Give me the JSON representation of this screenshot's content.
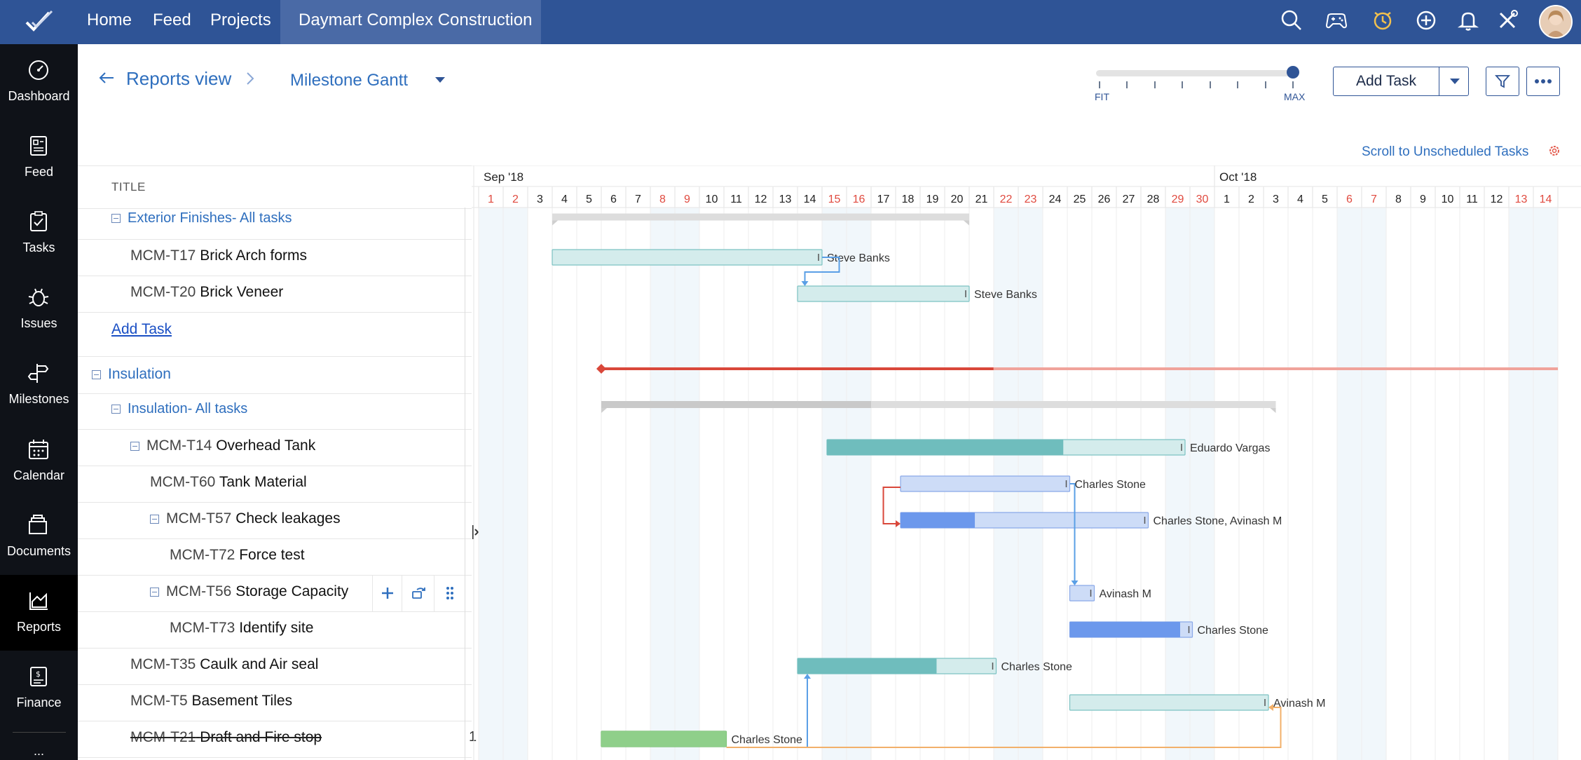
{
  "topbar": {
    "nav": [
      "Home",
      "Feed",
      "Projects"
    ],
    "active_project": "Daymart Complex Construction",
    "icons": [
      "search-icon",
      "gamepad-icon",
      "timer-icon",
      "add-circle-icon",
      "bell-icon",
      "tools-icon"
    ],
    "colors": {
      "bar": "#2f5496",
      "active": "#4a6aa6"
    }
  },
  "sidebar": {
    "items": [
      {
        "label": "Dashboard",
        "icon": "dashboard-icon"
      },
      {
        "label": "Feed",
        "icon": "feed-icon"
      },
      {
        "label": "Tasks",
        "icon": "tasks-icon"
      },
      {
        "label": "Issues",
        "icon": "bug-icon"
      },
      {
        "label": "Milestones",
        "icon": "signpost-icon"
      },
      {
        "label": "Calendar",
        "icon": "calendar-icon"
      },
      {
        "label": "Documents",
        "icon": "documents-icon"
      },
      {
        "label": "Reports",
        "icon": "reports-icon",
        "active": true
      },
      {
        "label": "Finance",
        "icon": "finance-icon"
      }
    ],
    "more": "..."
  },
  "header": {
    "breadcrumb": "Reports view",
    "view_name": "Milestone Gantt",
    "zoom": {
      "min_label": "FIT",
      "max_label": "MAX",
      "level": 1.0
    },
    "add_task_label": "Add Task",
    "scroll_unscheduled": "Scroll to Unscheduled Tasks"
  },
  "grid": {
    "title_header": "TITLE",
    "rows": [
      {
        "type": "group",
        "level": 1,
        "name": "Exterior Finishes- All tasks"
      },
      {
        "type": "task",
        "level": 1,
        "id": "MCM-T17",
        "name": "Brick Arch forms"
      },
      {
        "type": "task",
        "level": 1,
        "id": "MCM-T20",
        "name": "Brick Veneer"
      },
      {
        "type": "add",
        "name": "Add Task"
      },
      {
        "type": "milestone",
        "name": "Insulation"
      },
      {
        "type": "group",
        "level": 1,
        "name": "Insulation- All tasks"
      },
      {
        "type": "task",
        "level": 2,
        "id": "MCM-T14",
        "name": "Overhead Tank",
        "collapsible": true
      },
      {
        "type": "task",
        "level": 3,
        "id": "MCM-T60",
        "name": "Tank Material"
      },
      {
        "type": "task",
        "level": 3,
        "id": "MCM-T57",
        "name": "Check leakages",
        "collapsible": true
      },
      {
        "type": "task",
        "level": 4,
        "id": "MCM-T72",
        "name": "Force test"
      },
      {
        "type": "task",
        "level": 3,
        "id": "MCM-T56",
        "name": "Storage Capacity",
        "collapsible": true,
        "hover_actions": true
      },
      {
        "type": "task",
        "level": 4,
        "id": "MCM-T73",
        "name": "Identify site"
      },
      {
        "type": "task",
        "level": 1,
        "id": "MCM-T35",
        "name": "Caulk and Air seal"
      },
      {
        "type": "task",
        "level": 1,
        "id": "MCM-T5",
        "name": "Basement Tiles"
      },
      {
        "type": "task",
        "level": 1,
        "id": "MCM-T21",
        "name": "Draft and Fire stop",
        "completed": true
      }
    ],
    "row_overflow_marker": "1"
  },
  "gantt": {
    "months": [
      {
        "label": "Sep '18",
        "start_day": 1
      },
      {
        "label": "Oct '18",
        "start_day": 31
      }
    ],
    "days": [
      1,
      2,
      3,
      4,
      5,
      6,
      7,
      8,
      9,
      10,
      11,
      12,
      13,
      14,
      15,
      16,
      17,
      18,
      19,
      20,
      21,
      22,
      23,
      24,
      25,
      26,
      27,
      28,
      29,
      30,
      1,
      2,
      3,
      4,
      5,
      6,
      7,
      8,
      9,
      10,
      11,
      12,
      13,
      14
    ],
    "weekend_days": [
      1,
      2,
      8,
      9,
      15,
      16,
      22,
      23,
      29,
      30,
      36,
      37,
      43,
      44
    ],
    "colors": {
      "weekend_text": "#e04a3f",
      "teal_light": "#d4ecec",
      "teal": "#6fbdbd",
      "blue_light": "#cddcf7",
      "blue": "#6c98ec",
      "green": "#8fcf8a",
      "milestone": "#d9473a",
      "summary": "#dddddd"
    },
    "bars": [
      {
        "row": 0,
        "kind": "summary",
        "start": 4,
        "end": 21,
        "progress": 0
      },
      {
        "row": 1,
        "kind": "teal",
        "start": 4,
        "end": 15,
        "progress": 0,
        "assignee": "Steve Banks"
      },
      {
        "row": 2,
        "kind": "teal",
        "start": 14,
        "end": 21,
        "progress": 0,
        "assignee": "Steve Banks"
      },
      {
        "row": 4,
        "kind": "milestone",
        "start": 6,
        "end": 45,
        "progress": 0.41
      },
      {
        "row": 5,
        "kind": "summary",
        "start": 6,
        "end": 33.5,
        "progress": 0.4
      },
      {
        "row": 6,
        "kind": "teal",
        "start": 15.2,
        "end": 29.8,
        "progress": 0.66,
        "assignee": "Eduardo Vargas"
      },
      {
        "row": 7,
        "kind": "blue",
        "start": 18.2,
        "end": 25.1,
        "progress": 0,
        "assignee": "Charles Stone"
      },
      {
        "row": 8,
        "kind": "blue",
        "start": 18.2,
        "end": 28.3,
        "progress": 0.3,
        "assignee": "Charles Stone, Avinash M"
      },
      {
        "row": 10,
        "kind": "blue",
        "start": 25.1,
        "end": 26.1,
        "progress": 0,
        "assignee": "Avinash M"
      },
      {
        "row": 11,
        "kind": "blue",
        "start": 25.1,
        "end": 30.1,
        "progress": 0.9,
        "assignee": "Charles Stone"
      },
      {
        "row": 12,
        "kind": "teal",
        "start": 14,
        "end": 22.1,
        "progress": 0.7,
        "assignee": "Charles Stone"
      },
      {
        "row": 13,
        "kind": "teal",
        "start": 25.1,
        "end": 33.2,
        "progress": 0,
        "assignee": "Avinash M"
      },
      {
        "row": 14,
        "kind": "green",
        "start": 6,
        "end": 11.1,
        "progress": 1,
        "assignee": "Charles Stone"
      }
    ]
  }
}
